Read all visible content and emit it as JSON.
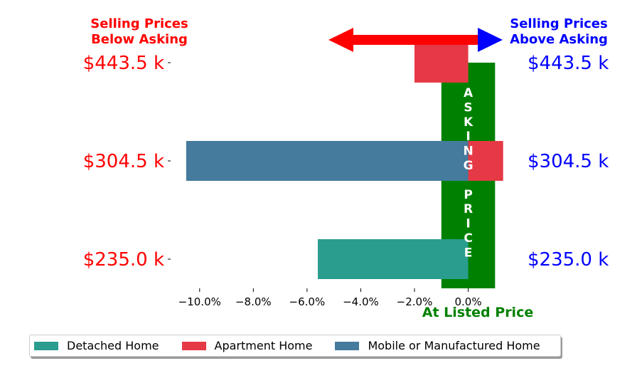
{
  "chart_data": {
    "type": "bar",
    "orientation": "horizontal",
    "categories": [
      "$235.0 k",
      "$304.5 k",
      "$443.5 k"
    ],
    "series": [
      {
        "name": "Detached Home",
        "color": "#2a9d8f",
        "values": [
          -5.6,
          null,
          null
        ]
      },
      {
        "name": "Apartment Home",
        "color": "#e63946",
        "values": [
          null,
          1.3,
          -2.0
        ]
      },
      {
        "name": "Mobile or Manufactured Home",
        "color": "#457b9d",
        "values": [
          null,
          -10.5,
          null
        ]
      }
    ],
    "left_tick_labels": [
      "$235.0 k",
      "$304.5 k",
      "$443.5 k"
    ],
    "right_tick_labels": [
      "$235.0 k",
      "$304.5 k",
      "$443.5 k"
    ],
    "xlim": [
      -11.0,
      1.6
    ],
    "xticks": [
      -10,
      -8,
      -6,
      -4,
      -2,
      0
    ],
    "xtick_labels": [
      "−10.0%",
      "−8.0%",
      "−6.0%",
      "−4.0%",
      "−2.0%",
      "0.0%"
    ],
    "xlabel": "At Listed Price",
    "xlabel_color": "#008000",
    "left_header": [
      "Selling Prices",
      "Below Asking"
    ],
    "left_color": "#ff0000",
    "right_header": [
      "Selling Prices",
      "Above Asking"
    ],
    "right_color": "#0000ff",
    "asking_band": {
      "from": -1.0,
      "to": 1.0,
      "color": "#008000",
      "letters": "ASKING PRICE"
    },
    "arrow": {
      "color": "#ff0000",
      "right_head_color": "#0000ff"
    },
    "grid": false,
    "legend": {
      "position": "bottom",
      "entries": [
        {
          "label": "Detached Home",
          "color": "#2a9d8f"
        },
        {
          "label": "Apartment Home",
          "color": "#e63946"
        },
        {
          "label": "Mobile or Manufactured Home",
          "color": "#457b9d"
        }
      ]
    }
  }
}
